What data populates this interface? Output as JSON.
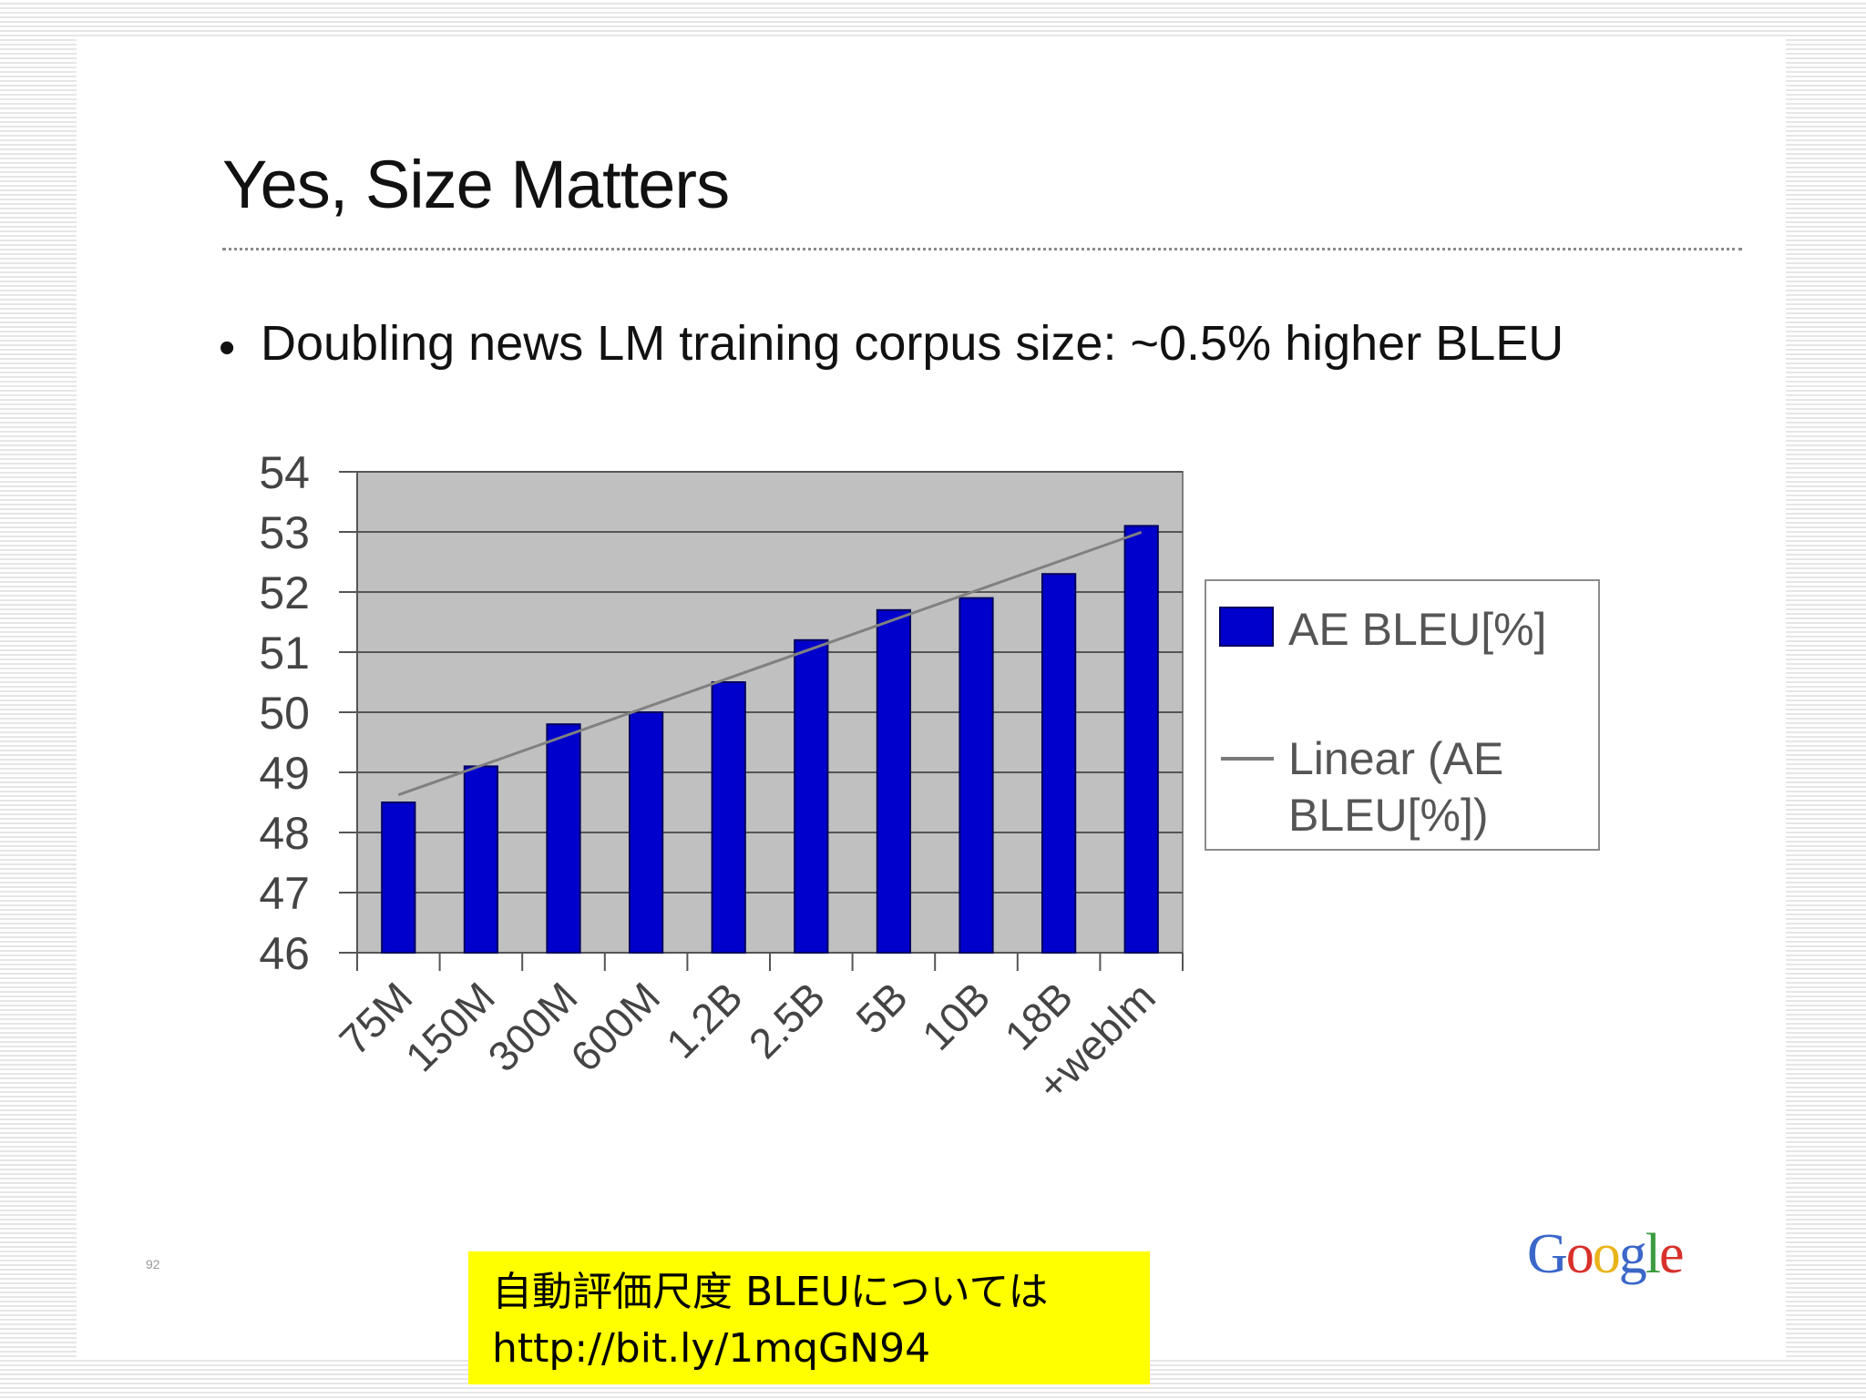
{
  "slide": {
    "title": "Yes, Size Matters",
    "bullet": "Doubling news LM training corpus size: ~0.5% higher BLEU",
    "page_number": "92",
    "logo_text": "Google",
    "note_line1": "自動評価尺度 BLEUについては",
    "note_line2": "http://bit.ly/1mqGN94"
  },
  "colors": {
    "bar": "#0000cc",
    "plot_bg": "#c0c0c0",
    "trend": "#808080",
    "note_bg": "#ffff00"
  },
  "chart_data": {
    "type": "bar",
    "categories": [
      "75M",
      "150M",
      "300M",
      "600M",
      "1.2B",
      "2.5B",
      "5B",
      "10B",
      "18B",
      "+weblm"
    ],
    "series": [
      {
        "name": "AE BLEU[%]",
        "values": [
          48.5,
          49.1,
          49.8,
          50.0,
          50.5,
          51.2,
          51.7,
          51.9,
          52.3,
          53.1
        ]
      }
    ],
    "trendline": {
      "name": "Linear (AE BLEU[%])",
      "type": "linear"
    },
    "ylim": [
      46,
      54
    ],
    "yticks": [
      46,
      47,
      48,
      49,
      50,
      51,
      52,
      53,
      54
    ],
    "grid": true,
    "legend": "right"
  }
}
